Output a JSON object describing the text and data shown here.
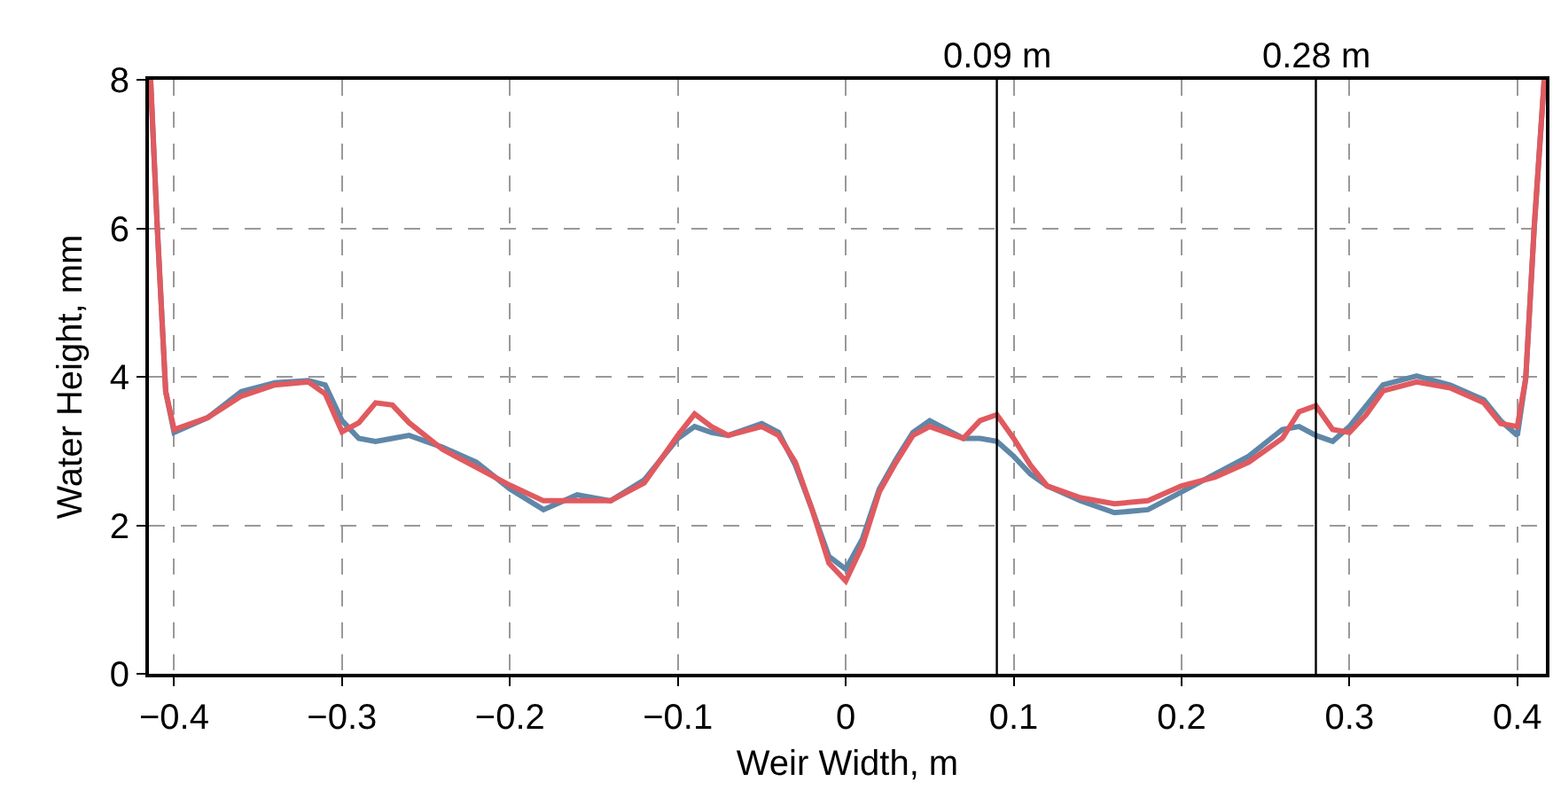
{
  "chart_data": {
    "type": "line",
    "xlabel": "Weir Width, m",
    "ylabel": "Water Height, mm",
    "xlim": [
      -0.415,
      0.417
    ],
    "ylim": [
      0,
      8
    ],
    "xticks": [
      {
        "value": -0.4,
        "label": "−0.4"
      },
      {
        "value": -0.3,
        "label": "−0.3"
      },
      {
        "value": -0.2,
        "label": "−0.2"
      },
      {
        "value": -0.1,
        "label": "−0.1"
      },
      0,
      0.1,
      0.2,
      0.3,
      0.4
    ],
    "yticks": [
      0,
      2,
      4,
      6,
      8
    ],
    "grid": true,
    "marker": "none",
    "line_style": "solid",
    "ref_lines": [
      {
        "axis": "x",
        "value": 0.09,
        "label": "0.09 m",
        "color": "#000000"
      },
      {
        "axis": "x",
        "value": 0.28,
        "label": "0.28 m",
        "color": "#000000"
      }
    ],
    "series": [
      {
        "color": "#5f87a8",
        "x": [
          -0.414,
          -0.41,
          -0.405,
          -0.4,
          -0.38,
          -0.36,
          -0.34,
          -0.32,
          -0.31,
          -0.3,
          -0.29,
          -0.28,
          -0.27,
          -0.26,
          -0.24,
          -0.22,
          -0.2,
          -0.18,
          -0.16,
          -0.14,
          -0.12,
          -0.1,
          -0.09,
          -0.08,
          -0.07,
          -0.05,
          -0.04,
          -0.03,
          -0.02,
          -0.01,
          0,
          0.01,
          0.02,
          0.03,
          0.04,
          0.05,
          0.06,
          0.07,
          0.08,
          0.09,
          0.1,
          0.11,
          0.12,
          0.14,
          0.16,
          0.18,
          0.2,
          0.22,
          0.24,
          0.26,
          0.27,
          0.28,
          0.29,
          0.3,
          0.31,
          0.32,
          0.34,
          0.36,
          0.38,
          0.39,
          0.4,
          0.405,
          0.41,
          0.416
        ],
        "values": [
          8,
          6,
          3.8,
          3.25,
          3.45,
          3.8,
          3.92,
          3.95,
          3.89,
          3.41,
          3.17,
          3.13,
          3.17,
          3.21,
          3.05,
          2.85,
          2.49,
          2.21,
          2.41,
          2.33,
          2.61,
          3.17,
          3.33,
          3.25,
          3.21,
          3.37,
          3.25,
          2.81,
          2.21,
          1.58,
          1.41,
          1.82,
          2.49,
          2.89,
          3.25,
          3.41,
          3.29,
          3.17,
          3.17,
          3.13,
          2.93,
          2.69,
          2.53,
          2.33,
          2.17,
          2.21,
          2.45,
          2.69,
          2.93,
          3.29,
          3.33,
          3.21,
          3.13,
          3.33,
          3.61,
          3.89,
          4.01,
          3.89,
          3.69,
          3.41,
          3.21,
          3.98,
          6,
          8
        ]
      },
      {
        "color": "#e05a5f",
        "x": [
          -0.414,
          -0.41,
          -0.405,
          -0.4,
          -0.38,
          -0.36,
          -0.34,
          -0.32,
          -0.31,
          -0.3,
          -0.29,
          -0.28,
          -0.27,
          -0.26,
          -0.24,
          -0.22,
          -0.2,
          -0.18,
          -0.16,
          -0.14,
          -0.12,
          -0.1,
          -0.09,
          -0.08,
          -0.07,
          -0.05,
          -0.04,
          -0.03,
          -0.02,
          -0.01,
          0,
          0.01,
          0.02,
          0.03,
          0.04,
          0.05,
          0.06,
          0.07,
          0.08,
          0.09,
          0.1,
          0.11,
          0.12,
          0.14,
          0.16,
          0.18,
          0.2,
          0.22,
          0.24,
          0.26,
          0.27,
          0.28,
          0.29,
          0.3,
          0.31,
          0.32,
          0.34,
          0.36,
          0.38,
          0.39,
          0.4,
          0.405,
          0.41,
          0.416
        ],
        "values": [
          8,
          6,
          3.8,
          3.29,
          3.45,
          3.74,
          3.89,
          3.93,
          3.77,
          3.26,
          3.38,
          3.65,
          3.62,
          3.38,
          3.02,
          2.78,
          2.54,
          2.33,
          2.33,
          2.33,
          2.57,
          3.21,
          3.5,
          3.33,
          3.21,
          3.33,
          3.21,
          2.85,
          2.21,
          1.49,
          1.25,
          1.73,
          2.45,
          2.85,
          3.21,
          3.33,
          3.25,
          3.17,
          3.41,
          3.49,
          3.17,
          2.81,
          2.53,
          2.37,
          2.29,
          2.33,
          2.53,
          2.65,
          2.85,
          3.17,
          3.53,
          3.61,
          3.29,
          3.25,
          3.49,
          3.81,
          3.93,
          3.85,
          3.65,
          3.37,
          3.33,
          3.98,
          6,
          8
        ]
      }
    ]
  }
}
